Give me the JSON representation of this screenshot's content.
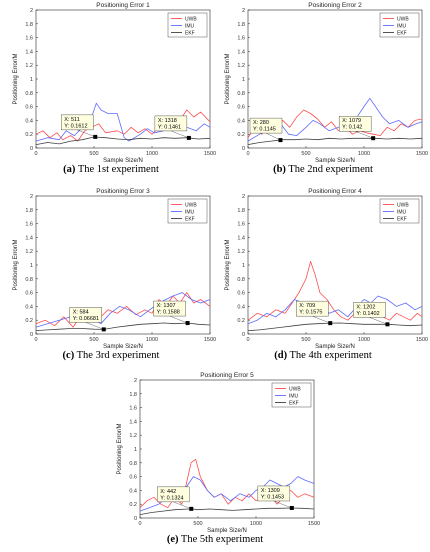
{
  "colors": {
    "uwb": "#ff4d4d",
    "imu": "#5d6bff",
    "ekf": "#404040",
    "marker": "#000000",
    "datatip_bg": "#ffffe0"
  },
  "chart_data": [
    {
      "type": "line",
      "title": "Positioning Error 1",
      "xlabel": "Sample Size/N",
      "ylabel": "Positioning Error/M",
      "xlim": [
        0,
        1500
      ],
      "ylim": [
        0,
        2
      ],
      "xticks": [
        "0",
        "500",
        "1000",
        "1500"
      ],
      "yticks": [
        "0",
        "0.2",
        "0.4",
        "0.6",
        "0.8",
        "1",
        "1.2",
        "1.4",
        "1.6",
        "1.8",
        "2"
      ],
      "legend": {
        "placement": "top-right",
        "entries": [
          "UWB",
          "IMU",
          "EKF"
        ]
      },
      "caption": {
        "label": "(a)",
        "text": "The 1st experiment"
      },
      "series": [
        {
          "name": "UWB",
          "x": [
            0,
            60,
            120,
            180,
            230,
            300,
            360,
            420,
            480,
            540,
            600,
            700,
            760,
            820,
            880,
            940,
            1000,
            1060,
            1120,
            1180,
            1240,
            1300,
            1360,
            1420,
            1500
          ],
          "y": [
            0.2,
            0.25,
            0.15,
            0.22,
            0.12,
            0.18,
            0.1,
            0.25,
            0.3,
            0.35,
            0.22,
            0.25,
            0.2,
            0.3,
            0.22,
            0.28,
            0.2,
            0.3,
            0.25,
            0.35,
            0.4,
            0.55,
            0.45,
            0.52,
            0.38
          ]
        },
        {
          "name": "IMU",
          "x": [
            0,
            100,
            200,
            260,
            330,
            400,
            460,
            520,
            560,
            620,
            700,
            760,
            800,
            900,
            960,
            1020,
            1100,
            1160,
            1220,
            1300,
            1380,
            1450,
            1500
          ],
          "y": [
            0.1,
            0.15,
            0.12,
            0.25,
            0.18,
            0.3,
            0.35,
            0.65,
            0.55,
            0.5,
            0.5,
            0.15,
            0.1,
            0.2,
            0.28,
            0.22,
            0.25,
            0.3,
            0.4,
            0.3,
            0.25,
            0.35,
            0.3
          ]
        },
        {
          "name": "EKF",
          "x": [
            0,
            100,
            200,
            300,
            400,
            500,
            600,
            700,
            800,
            900,
            1000,
            1100,
            1200,
            1300,
            1400,
            1500
          ],
          "y": [
            0.05,
            0.08,
            0.06,
            0.1,
            0.12,
            0.16,
            0.15,
            0.13,
            0.12,
            0.14,
            0.13,
            0.15,
            0.14,
            0.15,
            0.13,
            0.14
          ]
        }
      ],
      "datatips": [
        {
          "x": 511,
          "y": 0.1612,
          "label_x": "X: 511",
          "label_y": "Y: 0.1612"
        },
        {
          "x": 1318,
          "y": 0.1461,
          "label_x": "X: 1318",
          "label_y": "Y: 0.1461"
        }
      ]
    },
    {
      "type": "line",
      "title": "Positioning Error 2",
      "xlabel": "Sample Size/N",
      "ylabel": "Positioning Error/M",
      "xlim": [
        0,
        1500
      ],
      "ylim": [
        0,
        2
      ],
      "xticks": [
        "0",
        "500",
        "1000",
        "1500"
      ],
      "yticks": [
        "0",
        "0.2",
        "0.4",
        "0.6",
        "0.8",
        "1",
        "1.2",
        "1.4",
        "1.6",
        "1.8",
        "2"
      ],
      "legend": {
        "placement": "top-right",
        "entries": [
          "UWB",
          "IMU",
          "EKF"
        ]
      },
      "caption": {
        "label": "(b)",
        "text": "The 2nd experiment"
      },
      "series": [
        {
          "name": "UWB",
          "x": [
            0,
            60,
            120,
            180,
            240,
            300,
            360,
            420,
            480,
            540,
            600,
            660,
            720,
            780,
            840,
            900,
            960,
            1020,
            1080,
            1140,
            1200,
            1260,
            1320,
            1380,
            1440,
            1500
          ],
          "y": [
            0.15,
            0.3,
            0.2,
            0.35,
            0.25,
            0.4,
            0.3,
            0.45,
            0.55,
            0.5,
            0.42,
            0.3,
            0.38,
            0.25,
            0.3,
            0.2,
            0.25,
            0.22,
            0.2,
            0.18,
            0.3,
            0.25,
            0.35,
            0.3,
            0.4,
            0.42
          ]
        },
        {
          "name": "IMU",
          "x": [
            0,
            100,
            200,
            280,
            350,
            420,
            500,
            560,
            620,
            700,
            780,
            850,
            920,
            1000,
            1050,
            1100,
            1160,
            1220,
            1300,
            1380,
            1450,
            1500
          ],
          "y": [
            0.1,
            0.2,
            0.3,
            0.35,
            0.2,
            0.18,
            0.3,
            0.4,
            0.35,
            0.25,
            0.3,
            0.35,
            0.4,
            0.6,
            0.72,
            0.6,
            0.45,
            0.35,
            0.4,
            0.3,
            0.35,
            0.38
          ]
        },
        {
          "name": "EKF",
          "x": [
            0,
            100,
            200,
            300,
            400,
            500,
            600,
            700,
            800,
            900,
            1000,
            1100,
            1200,
            1300,
            1400,
            1500
          ],
          "y": [
            0.05,
            0.08,
            0.1,
            0.12,
            0.12,
            0.13,
            0.12,
            0.14,
            0.13,
            0.14,
            0.14,
            0.14,
            0.13,
            0.14,
            0.13,
            0.14
          ]
        }
      ],
      "datatips": [
        {
          "x": 280,
          "y": 0.1145,
          "label_x": "X: 280",
          "label_y": "Y: 0.1145"
        },
        {
          "x": 1079,
          "y": 0.142,
          "label_x": "X: 1079",
          "label_y": "Y: 0.142"
        }
      ]
    },
    {
      "type": "line",
      "title": "Positioning Error 3",
      "xlabel": "Sample Size/N",
      "ylabel": "Positioning Error/M",
      "xlim": [
        0,
        1500
      ],
      "ylim": [
        0,
        2
      ],
      "xticks": [
        "0",
        "500",
        "1000",
        "1500"
      ],
      "yticks": [
        "0",
        "0.2",
        "0.4",
        "0.6",
        "0.8",
        "1",
        "1.2",
        "1.4",
        "1.6",
        "1.8",
        "2"
      ],
      "legend": {
        "placement": "top-right",
        "entries": [
          "UWB",
          "IMU",
          "EKF"
        ]
      },
      "caption": {
        "label": "(c)",
        "text": "The 3rd experiment"
      },
      "series": [
        {
          "name": "UWB",
          "x": [
            0,
            80,
            160,
            240,
            320,
            400,
            480,
            560,
            620,
            700,
            780,
            860,
            940,
            1000,
            1060,
            1120,
            1180,
            1240,
            1300,
            1360,
            1420,
            1500
          ],
          "y": [
            0.15,
            0.2,
            0.12,
            0.25,
            0.1,
            0.3,
            0.2,
            0.25,
            0.35,
            0.3,
            0.4,
            0.28,
            0.35,
            0.3,
            0.5,
            0.4,
            0.55,
            0.45,
            0.6,
            0.45,
            0.5,
            0.4
          ]
        },
        {
          "name": "IMU",
          "x": [
            0,
            100,
            200,
            300,
            400,
            500,
            560,
            640,
            720,
            800,
            900,
            980,
            1060,
            1120,
            1180,
            1260,
            1340,
            1420,
            1500
          ],
          "y": [
            0.1,
            0.15,
            0.2,
            0.25,
            0.3,
            0.2,
            0.15,
            0.3,
            0.4,
            0.35,
            0.25,
            0.35,
            0.45,
            0.5,
            0.55,
            0.6,
            0.5,
            0.45,
            0.5
          ]
        },
        {
          "name": "EKF",
          "x": [
            0,
            100,
            200,
            300,
            400,
            500,
            584,
            700,
            800,
            900,
            1000,
            1100,
            1200,
            1307,
            1400,
            1500
          ],
          "y": [
            0.05,
            0.06,
            0.07,
            0.08,
            0.08,
            0.07,
            0.067,
            0.1,
            0.12,
            0.14,
            0.15,
            0.16,
            0.15,
            0.159,
            0.14,
            0.13
          ]
        }
      ],
      "datatips": [
        {
          "x": 584,
          "y": 0.06681,
          "label_x": "X: 584",
          "label_y": "Y: 0.06681"
        },
        {
          "x": 1307,
          "y": 0.1588,
          "label_x": "X: 1307",
          "label_y": "Y: 0.1588"
        }
      ]
    },
    {
      "type": "line",
      "title": "Positioning Error 4",
      "xlabel": "Sample Size/N",
      "ylabel": "Positioning Error/M",
      "xlim": [
        0,
        1500
      ],
      "ylim": [
        0,
        2
      ],
      "xticks": [
        "0",
        "500",
        "1000",
        "1500"
      ],
      "yticks": [
        "0",
        "0.2",
        "0.4",
        "0.6",
        "0.8",
        "1",
        "1.2",
        "1.4",
        "1.6",
        "1.8",
        "2"
      ],
      "legend": {
        "placement": "top-right",
        "entries": [
          "UWB",
          "IMU",
          "EKF"
        ]
      },
      "caption": {
        "label": "(d)",
        "text": "The 4th experiment"
      },
      "series": [
        {
          "name": "UWB",
          "x": [
            0,
            80,
            160,
            240,
            320,
            380,
            440,
            500,
            540,
            580,
            620,
            680,
            740,
            800,
            860,
            920,
            980,
            1040,
            1100,
            1160,
            1220,
            1280,
            1340,
            1400,
            1460,
            1500
          ],
          "y": [
            0.2,
            0.3,
            0.25,
            0.35,
            0.3,
            0.45,
            0.6,
            0.8,
            1.05,
            0.85,
            0.6,
            0.5,
            0.35,
            0.25,
            0.2,
            0.3,
            0.25,
            0.35,
            0.3,
            0.25,
            0.2,
            0.3,
            0.25,
            0.2,
            0.3,
            0.25
          ]
        },
        {
          "name": "IMU",
          "x": [
            0,
            80,
            160,
            240,
            320,
            400,
            480,
            560,
            640,
            700,
            780,
            860,
            940,
            1000,
            1060,
            1120,
            1200,
            1280,
            1360,
            1440,
            1500
          ],
          "y": [
            0.15,
            0.2,
            0.3,
            0.25,
            0.35,
            0.5,
            0.45,
            0.35,
            0.4,
            0.3,
            0.35,
            0.25,
            0.4,
            0.5,
            0.45,
            0.55,
            0.5,
            0.4,
            0.45,
            0.35,
            0.4
          ]
        },
        {
          "name": "EKF",
          "x": [
            0,
            100,
            200,
            300,
            400,
            500,
            600,
            709,
            800,
            900,
            1000,
            1100,
            1202,
            1300,
            1400,
            1500
          ],
          "y": [
            0.05,
            0.06,
            0.08,
            0.1,
            0.12,
            0.14,
            0.15,
            0.158,
            0.16,
            0.15,
            0.14,
            0.14,
            0.14,
            0.13,
            0.12,
            0.13
          ]
        }
      ],
      "datatips": [
        {
          "x": 709,
          "y": 0.1575,
          "label_x": "X: 709",
          "label_y": "Y: 0.1575"
        },
        {
          "x": 1202,
          "y": 0.1402,
          "label_x": "X: 1202",
          "label_y": "Y: 0.1402"
        }
      ]
    },
    {
      "type": "line",
      "title": "Positioning Error 5",
      "xlabel": "Sample Size/N",
      "ylabel": "Positioning Error/M",
      "xlim": [
        0,
        1500
      ],
      "ylim": [
        0,
        2
      ],
      "xticks": [
        "0",
        "500",
        "1000",
        "1500"
      ],
      "yticks": [
        "0",
        "0.2",
        "0.4",
        "0.6",
        "0.8",
        "1",
        "1.2",
        "1.4",
        "1.6",
        "1.8",
        "2"
      ],
      "legend": {
        "placement": "top-right",
        "entries": [
          "UWB",
          "IMU",
          "EKF"
        ]
      },
      "caption": {
        "label": "(e)",
        "text": "The 5th experiment"
      },
      "series": [
        {
          "name": "UWB",
          "x": [
            0,
            60,
            120,
            180,
            240,
            300,
            360,
            400,
            440,
            480,
            520,
            580,
            640,
            700,
            760,
            820,
            880,
            940,
            1000,
            1060,
            1120,
            1180,
            1240,
            1300,
            1360,
            1420,
            1500
          ],
          "y": [
            0.15,
            0.25,
            0.3,
            0.2,
            0.15,
            0.3,
            0.2,
            0.5,
            0.8,
            0.85,
            0.6,
            0.4,
            0.3,
            0.35,
            0.2,
            0.3,
            0.25,
            0.35,
            0.25,
            0.3,
            0.35,
            0.2,
            0.3,
            0.4,
            0.3,
            0.35,
            0.3
          ]
        },
        {
          "name": "IMU",
          "x": [
            0,
            80,
            160,
            240,
            320,
            400,
            460,
            520,
            580,
            640,
            700,
            780,
            860,
            940,
            1000,
            1060,
            1120,
            1180,
            1240,
            1300,
            1360,
            1420,
            1500
          ],
          "y": [
            0.1,
            0.15,
            0.2,
            0.3,
            0.35,
            0.45,
            0.6,
            0.55,
            0.4,
            0.3,
            0.35,
            0.25,
            0.35,
            0.3,
            0.4,
            0.45,
            0.55,
            0.5,
            0.45,
            0.5,
            0.6,
            0.55,
            0.5
          ]
        },
        {
          "name": "EKF",
          "x": [
            0,
            100,
            200,
            300,
            442,
            500,
            600,
            700,
            800,
            900,
            1000,
            1100,
            1200,
            1309,
            1400,
            1500
          ],
          "y": [
            0.05,
            0.08,
            0.1,
            0.12,
            0.132,
            0.12,
            0.13,
            0.12,
            0.11,
            0.12,
            0.13,
            0.14,
            0.14,
            0.145,
            0.14,
            0.13
          ]
        }
      ],
      "datatips": [
        {
          "x": 442,
          "y": 0.1324,
          "label_x": "X: 442",
          "label_y": "Y: 0.1324"
        },
        {
          "x": 1309,
          "y": 0.1453,
          "label_x": "X: 1309",
          "label_y": "Y: 0.1453"
        }
      ]
    }
  ]
}
